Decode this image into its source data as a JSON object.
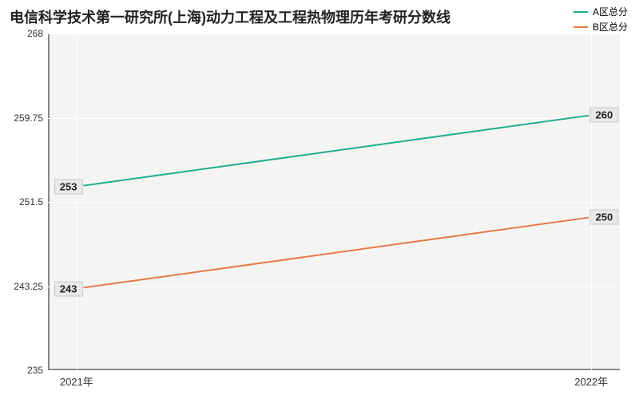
{
  "chart": {
    "type": "line",
    "title": "电信科学技术第一研究所(上海)动力工程及工程热物理历年考研分数线",
    "title_fontsize": 18,
    "background_color": "#ffffff",
    "plot_background_color": "#f4f4f2",
    "grid_color": "#ffffff",
    "axis_color": "#888888",
    "label_color": "#333333",
    "label_fontsize": 12,
    "xlim": [
      "2021年",
      "2022年"
    ],
    "ylim": [
      235,
      268
    ],
    "yticks": [
      235,
      243.25,
      251.5,
      259.75,
      268
    ],
    "ytick_labels": [
      "235",
      "243.25",
      "251.5",
      "259.75",
      "268"
    ],
    "categories": [
      "2021年",
      "2022年"
    ],
    "x_positions": [
      0.05,
      0.95
    ],
    "series": [
      {
        "name": "A区总分",
        "color": "#1fae8f",
        "line_width": 2,
        "values": [
          253,
          260
        ],
        "label_left": "253",
        "label_right": "260"
      },
      {
        "name": "B区总分",
        "color": "#e67a47",
        "line_width": 2,
        "values": [
          243,
          250
        ],
        "label_left": "243",
        "label_right": "250"
      }
    ],
    "legend": {
      "position": "top-right",
      "fontsize": 12
    }
  }
}
